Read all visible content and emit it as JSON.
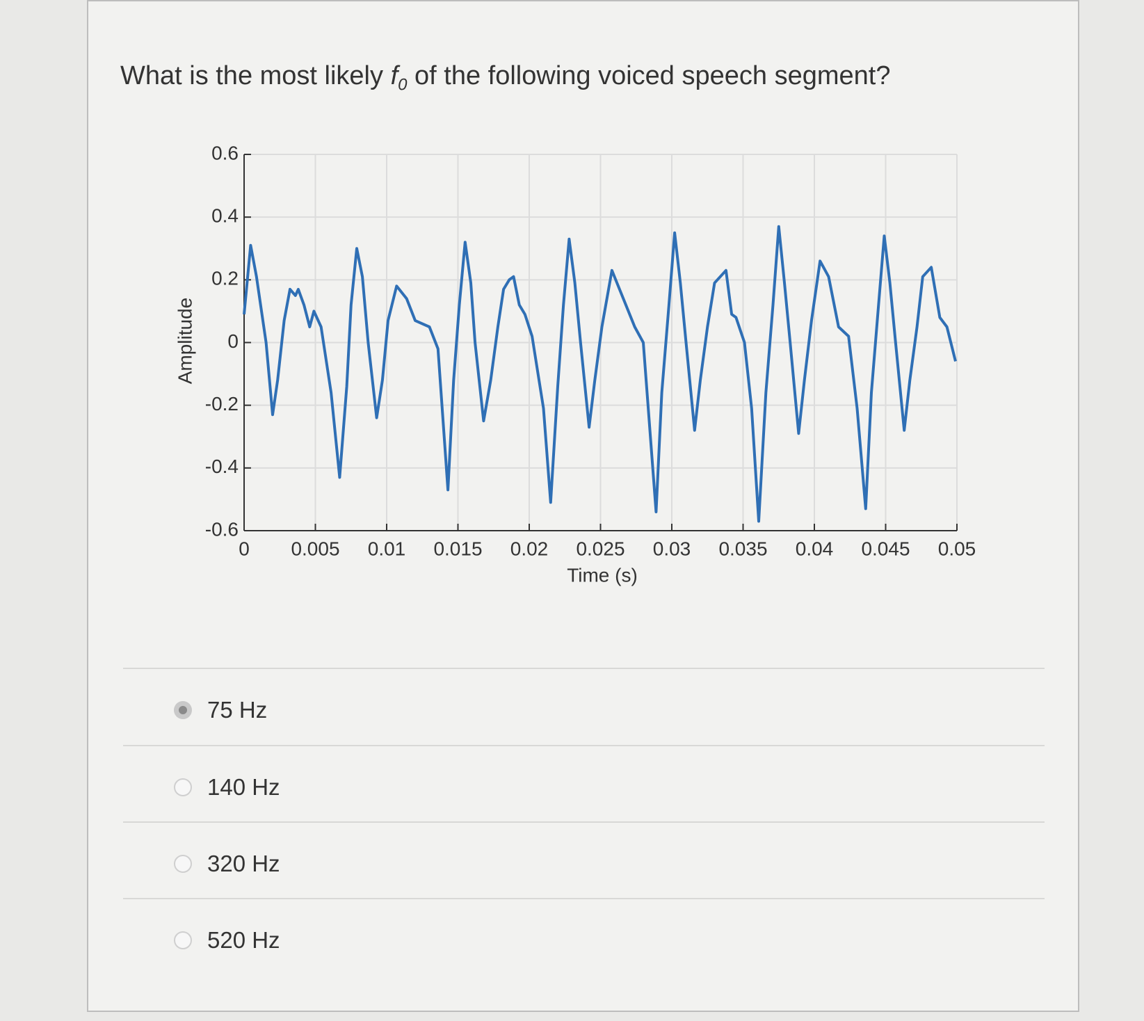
{
  "question": {
    "before": "What is the most likely ",
    "symbol": "f",
    "subscript": "0",
    "after": " of the following voiced speech segment?"
  },
  "chart_data": {
    "type": "line",
    "xlabel": "Time (s)",
    "ylabel": "Amplitude",
    "x": [
      0,
      0.00046,
      0.00087,
      0.00154,
      0.002,
      0.00235,
      0.00281,
      0.00322,
      0.0036,
      0.0038,
      0.0042,
      0.0046,
      0.0049,
      0.0054,
      0.0061,
      0.0067,
      0.0072,
      0.0075,
      0.0079,
      0.0083,
      0.0087,
      0.0093,
      0.0097,
      0.0101,
      0.0107,
      0.0114,
      0.012,
      0.013,
      0.0136,
      0.0143,
      0.0147,
      0.0151,
      0.0155,
      0.0159,
      0.0162,
      0.0168,
      0.0173,
      0.0178,
      0.0182,
      0.0186,
      0.0189,
      0.0193,
      0.0197,
      0.0202,
      0.021,
      0.0215,
      0.022,
      0.0224,
      0.0228,
      0.0232,
      0.0236,
      0.0242,
      0.0246,
      0.0251,
      0.0258,
      0.0266,
      0.0274,
      0.028,
      0.0289,
      0.0293,
      0.0298,
      0.0302,
      0.0306,
      0.031,
      0.0316,
      0.032,
      0.0325,
      0.033,
      0.0334,
      0.0338,
      0.0342,
      0.0345,
      0.0351,
      0.0356,
      0.0361,
      0.0366,
      0.0371,
      0.0375,
      0.0379,
      0.0383,
      0.0389,
      0.0393,
      0.0398,
      0.0404,
      0.041,
      0.0417,
      0.0424,
      0.043,
      0.0436,
      0.044,
      0.0445,
      0.0449,
      0.0453,
      0.0457,
      0.0463,
      0.0467,
      0.0472,
      0.0476,
      0.0482,
      0.0488,
      0.0493,
      0.0499
    ],
    "values": [
      0.09,
      0.31,
      0.21,
      0.0,
      -0.23,
      -0.12,
      0.07,
      0.17,
      0.15,
      0.17,
      0.12,
      0.05,
      0.1,
      0.05,
      -0.16,
      -0.43,
      -0.14,
      0.12,
      0.3,
      0.21,
      0.0,
      -0.24,
      -0.12,
      0.07,
      0.18,
      0.14,
      0.07,
      0.05,
      -0.02,
      -0.47,
      -0.12,
      0.12,
      0.32,
      0.19,
      0.0,
      -0.25,
      -0.12,
      0.05,
      0.17,
      0.2,
      0.21,
      0.12,
      0.09,
      0.02,
      -0.21,
      -0.51,
      -0.14,
      0.12,
      0.33,
      0.19,
      0.0,
      -0.27,
      -0.12,
      0.05,
      0.23,
      0.14,
      0.05,
      0.0,
      -0.54,
      -0.16,
      0.12,
      0.35,
      0.19,
      0.0,
      -0.28,
      -0.12,
      0.05,
      0.19,
      0.21,
      0.23,
      0.09,
      0.08,
      0.0,
      -0.21,
      -0.57,
      -0.16,
      0.12,
      0.37,
      0.19,
      0.0,
      -0.29,
      -0.12,
      0.07,
      0.26,
      0.21,
      0.05,
      0.02,
      -0.21,
      -0.53,
      -0.16,
      0.12,
      0.34,
      0.19,
      0.0,
      -0.28,
      -0.12,
      0.05,
      0.21,
      0.24,
      0.08,
      0.05,
      -0.06
    ],
    "color": "#2f6fb5",
    "xlim": [
      0,
      0.05
    ],
    "xticks": [
      0,
      0.005,
      0.01,
      0.015,
      0.02,
      0.025,
      0.03,
      0.035,
      0.04,
      0.045,
      0.05
    ],
    "ylim": [
      -0.6,
      0.6
    ],
    "yticks": [
      0.6,
      0.4,
      0.2,
      0,
      -0.2,
      -0.4,
      -0.6
    ],
    "grid": true
  },
  "options": [
    "75 Hz",
    "140 Hz",
    "320 Hz",
    "520 Hz"
  ],
  "selected": 0
}
